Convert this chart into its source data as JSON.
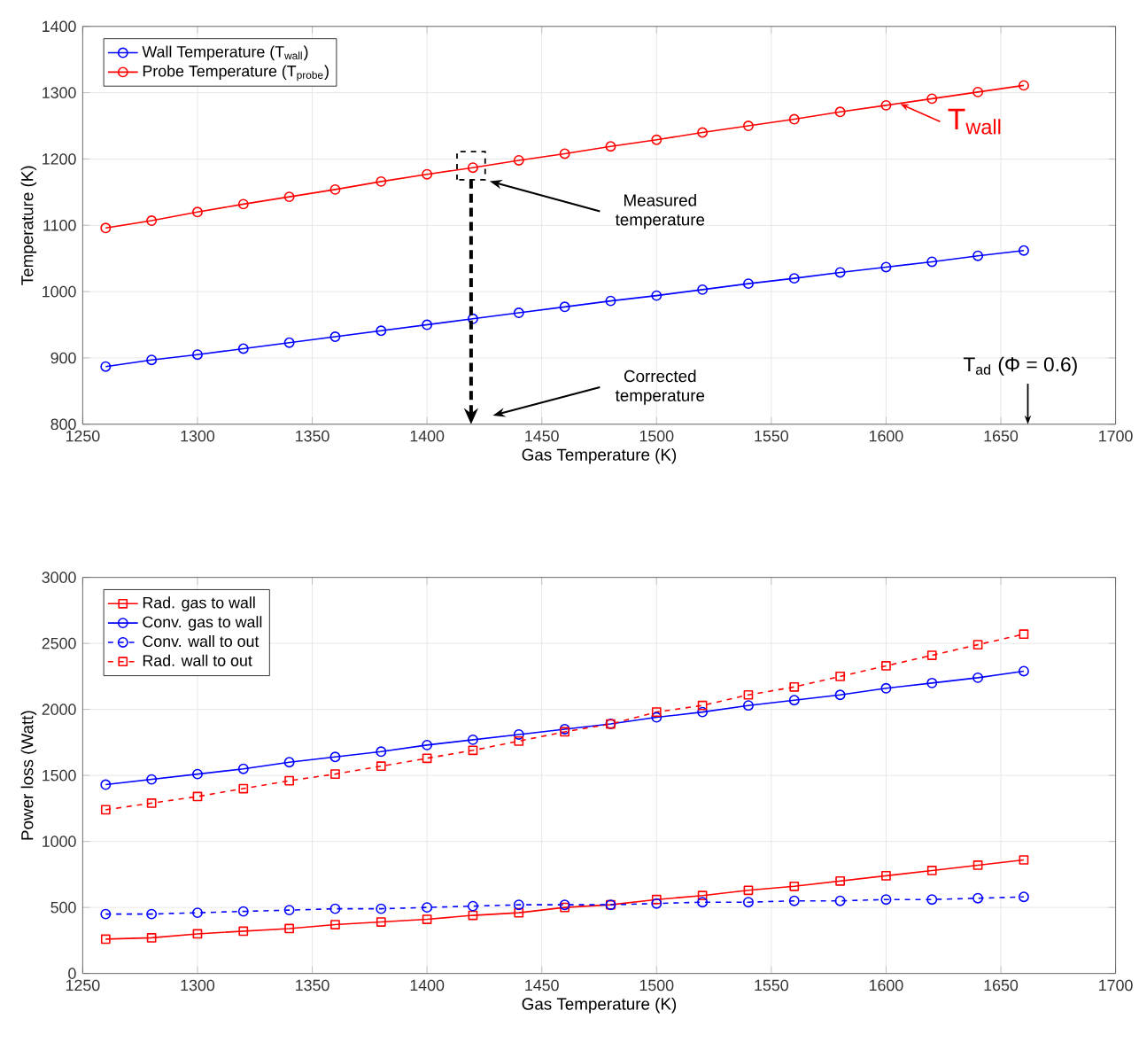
{
  "chart_data": [
    {
      "type": "line",
      "xlabel": "Gas Temperature (K)",
      "ylabel": "Temperature (K)",
      "x": [
        1260,
        1280,
        1300,
        1320,
        1340,
        1360,
        1380,
        1400,
        1420,
        1440,
        1460,
        1480,
        1500,
        1520,
        1540,
        1560,
        1580,
        1600,
        1620,
        1640,
        1660
      ],
      "series": [
        {
          "name": "Wall Temperature (T$_{wall}$)",
          "color": "#0000ff",
          "marker": "circle",
          "line_style": "solid",
          "values": [
            887,
            897,
            905,
            914,
            923,
            932,
            941,
            950,
            959,
            968,
            977,
            986,
            994,
            1003,
            1012,
            1020,
            1029,
            1037,
            1045,
            1054,
            1062
          ]
        },
        {
          "name": "Probe Temperature (T$_{probe}$)",
          "color": "#ff0000",
          "marker": "circle",
          "line_style": "solid",
          "values": [
            1096,
            1107,
            1120,
            1132,
            1143,
            1154,
            1166,
            1177,
            1187,
            1198,
            1208,
            1219,
            1229,
            1240,
            1250,
            1260,
            1271,
            1281,
            1291,
            1301,
            1311
          ]
        }
      ],
      "xlim": [
        1250,
        1700
      ],
      "xticks": [
        1250,
        1300,
        1350,
        1400,
        1450,
        1500,
        1550,
        1600,
        1650,
        1700
      ],
      "ylim": [
        800,
        1400
      ],
      "yticks": [
        800,
        900,
        1000,
        1100,
        1200,
        1300,
        1400
      ],
      "grid": true,
      "legend": "top left",
      "annotations": [
        {
          "text": "T$_{wall}$",
          "x": 1605,
          "y": 1283
        },
        "Measured temperature",
        "Corrected temperature",
        "T$_{ad}$ (Φ = 0.6)"
      ]
    },
    {
      "type": "line",
      "xlabel": "Gas Temperature (K)",
      "ylabel": "Power loss (Watt)",
      "x": [
        1260,
        1280,
        1300,
        1320,
        1340,
        1360,
        1380,
        1400,
        1420,
        1440,
        1460,
        1480,
        1500,
        1520,
        1540,
        1560,
        1580,
        1600,
        1620,
        1640,
        1660
      ],
      "series": [
        {
          "name": "Rad. gas to wall",
          "color": "#ff0000",
          "marker": "square",
          "line_style": "solid",
          "values": [
            260,
            270,
            300,
            320,
            340,
            370,
            390,
            410,
            440,
            460,
            500,
            520,
            560,
            590,
            630,
            660,
            700,
            740,
            780,
            820,
            860
          ]
        },
        {
          "name": "Conv. gas to wall",
          "color": "#0000ff",
          "marker": "circle",
          "line_style": "solid",
          "values": [
            1430,
            1470,
            1510,
            1550,
            1600,
            1640,
            1680,
            1730,
            1770,
            1810,
            1850,
            1890,
            1940,
            1980,
            2030,
            2070,
            2110,
            2160,
            2200,
            2240,
            2290
          ]
        },
        {
          "name": "Conv. wall to out",
          "color": "#0000ff",
          "marker": "circle",
          "line_style": "dashed",
          "values": [
            450,
            450,
            460,
            470,
            480,
            490,
            490,
            500,
            510,
            520,
            520,
            520,
            530,
            540,
            540,
            550,
            550,
            560,
            560,
            570,
            580
          ]
        },
        {
          "name": "Rad. wall to out",
          "color": "#ff0000",
          "marker": "square",
          "line_style": "dashed",
          "values": [
            1240,
            1290,
            1340,
            1400,
            1460,
            1510,
            1570,
            1630,
            1690,
            1760,
            1830,
            1890,
            1980,
            2030,
            2110,
            2170,
            2250,
            2330,
            2410,
            2490,
            2570
          ]
        }
      ],
      "xlim": [
        1250,
        1700
      ],
      "xticks": [
        1250,
        1300,
        1350,
        1400,
        1450,
        1500,
        1550,
        1600,
        1650,
        1700
      ],
      "ylim": [
        0,
        3000
      ],
      "yticks": [
        0,
        500,
        1000,
        1500,
        2000,
        2500,
        3000
      ],
      "grid": true,
      "legend": "top left"
    }
  ]
}
